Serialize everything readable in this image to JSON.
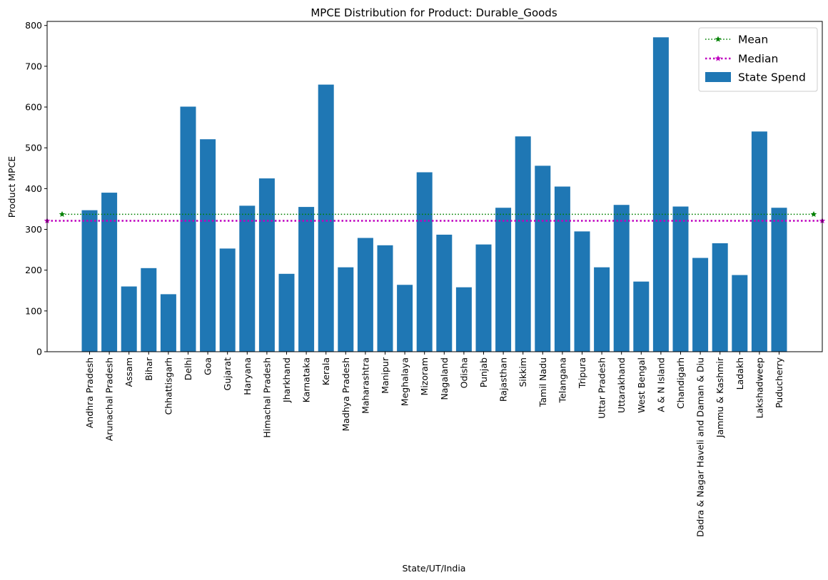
{
  "chart_data": {
    "type": "bar",
    "title": "MPCE Distribution for Product: Durable_Goods",
    "xlabel": "State/UT/India",
    "ylabel": "Product MPCE",
    "ylim": [
      0,
      810
    ],
    "yticks": [
      0,
      100,
      200,
      300,
      400,
      500,
      600,
      700,
      800
    ],
    "grid": false,
    "legend_position": "top-right",
    "categories": [
      "Andhra Pradesh",
      "Arunachal Pradesh",
      "Assam",
      "Bihar",
      "Chhattisgarh",
      "Delhi",
      "Goa",
      "Gujarat",
      "Haryana",
      "Himachal Pradesh",
      "Jharkhand",
      "Karnataka",
      "Kerala",
      "Madhya Pradesh",
      "Maharashtra",
      "Manipur",
      "Meghalaya",
      "Mizoram",
      "Nagaland",
      "Odisha",
      "Punjab",
      "Rajasthan",
      "Sikkim",
      "Tamil Nadu",
      "Telangana",
      "Tripura",
      "Uttar Pradesh",
      "Uttarakhand",
      "West Bengal",
      "A & N Island",
      "Chandigarh",
      "Dadra & Nagar Haveli and Daman & Diu",
      "Jammu & Kashmir",
      "Ladakh",
      "Lakshadweep",
      "Puducherry"
    ],
    "series": [
      {
        "name": "State Spend",
        "color": "#1f77b4",
        "values": [
          347,
          390,
          160,
          205,
          141,
          601,
          521,
          253,
          358,
          425,
          191,
          355,
          655,
          207,
          279,
          261,
          164,
          440,
          287,
          158,
          263,
          353,
          528,
          456,
          405,
          295,
          207,
          360,
          172,
          771,
          356,
          230,
          266,
          188,
          540,
          353
        ]
      }
    ],
    "reference_lines": [
      {
        "name": "Mean",
        "value": 337,
        "color": "#008000",
        "style": "dotted",
        "marker": "star"
      },
      {
        "name": "Median",
        "value": 321,
        "color": "#bf00bf",
        "style": "dotted",
        "marker": "star"
      }
    ]
  }
}
